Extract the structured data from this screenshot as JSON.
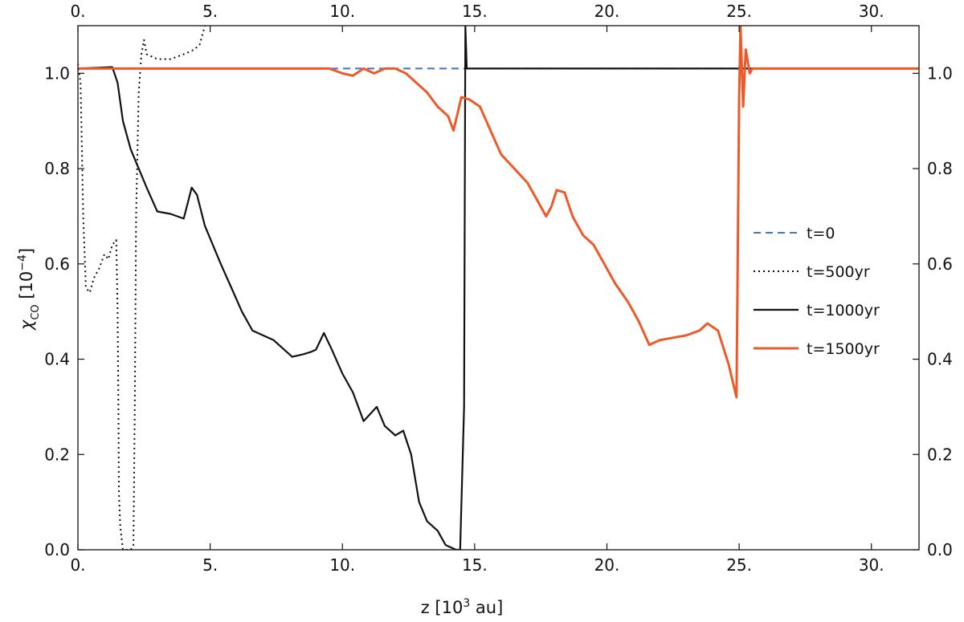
{
  "chart_data": {
    "type": "line",
    "xlabel": {
      "main": "z [10",
      "sup": "3",
      "unit": " au]"
    },
    "ylabel": {
      "main": "χ",
      "sub": "CO",
      "unit": " [10",
      "sup": "−4",
      "close": "]"
    },
    "xlim": [
      0,
      31.8
    ],
    "ylim": [
      0,
      1.1
    ],
    "x_ticks": [
      0,
      5,
      10,
      15,
      20,
      25,
      30
    ],
    "x_tick_labels": [
      "0.",
      "5.",
      "10.",
      "15.",
      "20.",
      "25.",
      "30."
    ],
    "y_ticks": [
      0,
      0.2,
      0.4,
      0.6,
      0.8,
      1.0
    ],
    "y_tick_labels": [
      "0.0",
      "0.2",
      "0.4",
      "0.6",
      "0.8",
      "1.0"
    ],
    "grid": false,
    "legend_position": "right",
    "series": [
      {
        "name": "t=0",
        "color": "#4472c4",
        "style": "dashed",
        "points": [
          [
            0,
            1.01
          ],
          [
            31.8,
            1.01
          ]
        ]
      },
      {
        "name": "t=500yr",
        "color": "#111111",
        "style": "dotted",
        "points": [
          [
            0.0,
            1.02
          ],
          [
            0.1,
            0.98
          ],
          [
            0.2,
            0.7
          ],
          [
            0.3,
            0.55
          ],
          [
            0.45,
            0.54
          ],
          [
            0.6,
            0.57
          ],
          [
            0.8,
            0.59
          ],
          [
            1.0,
            0.62
          ],
          [
            1.15,
            0.61
          ],
          [
            1.3,
            0.64
          ],
          [
            1.45,
            0.65
          ],
          [
            1.5,
            0.5
          ],
          [
            1.53,
            0.3
          ],
          [
            1.55,
            0.12
          ],
          [
            1.6,
            0.05
          ],
          [
            1.7,
            0.0
          ],
          [
            2.0,
            0.0
          ],
          [
            2.1,
            0.01
          ],
          [
            2.15,
            0.3
          ],
          [
            2.2,
            0.7
          ],
          [
            2.3,
            0.96
          ],
          [
            2.4,
            1.04
          ],
          [
            2.5,
            1.07
          ],
          [
            2.6,
            1.04
          ],
          [
            3.0,
            1.03
          ],
          [
            3.5,
            1.03
          ],
          [
            4.0,
            1.04
          ],
          [
            4.4,
            1.05
          ],
          [
            4.6,
            1.06
          ],
          [
            4.7,
            1.08
          ],
          [
            4.8,
            1.1
          ]
        ]
      },
      {
        "name": "t=1000yr",
        "color": "#111111",
        "style": "solid",
        "points": [
          [
            0,
            1.01
          ],
          [
            1.3,
            1.013
          ],
          [
            1.5,
            0.98
          ],
          [
            1.7,
            0.9
          ],
          [
            2.0,
            0.84
          ],
          [
            2.3,
            0.8
          ],
          [
            2.6,
            0.76
          ],
          [
            3.0,
            0.71
          ],
          [
            3.5,
            0.705
          ],
          [
            4.0,
            0.695
          ],
          [
            4.3,
            0.76
          ],
          [
            4.5,
            0.745
          ],
          [
            4.8,
            0.68
          ],
          [
            5.1,
            0.64
          ],
          [
            5.4,
            0.6
          ],
          [
            5.8,
            0.55
          ],
          [
            6.2,
            0.5
          ],
          [
            6.6,
            0.46
          ],
          [
            7.0,
            0.45
          ],
          [
            7.4,
            0.44
          ],
          [
            7.8,
            0.42
          ],
          [
            8.1,
            0.405
          ],
          [
            8.5,
            0.41
          ],
          [
            8.8,
            0.415
          ],
          [
            9.0,
            0.42
          ],
          [
            9.3,
            0.455
          ],
          [
            9.6,
            0.42
          ],
          [
            10.0,
            0.37
          ],
          [
            10.4,
            0.33
          ],
          [
            10.8,
            0.27
          ],
          [
            11.3,
            0.3
          ],
          [
            11.6,
            0.26
          ],
          [
            12.0,
            0.24
          ],
          [
            12.3,
            0.25
          ],
          [
            12.6,
            0.2
          ],
          [
            12.9,
            0.1
          ],
          [
            13.2,
            0.06
          ],
          [
            13.6,
            0.04
          ],
          [
            13.9,
            0.01
          ],
          [
            14.3,
            0.0
          ],
          [
            14.45,
            0.0
          ],
          [
            14.6,
            0.3
          ],
          [
            14.65,
            1.1
          ],
          [
            14.7,
            1.01
          ],
          [
            31.8,
            1.01
          ]
        ]
      },
      {
        "name": "t=1500yr",
        "color": "#ed5a2a",
        "style": "solid",
        "points": [
          [
            0,
            1.01
          ],
          [
            9.0,
            1.01
          ],
          [
            9.5,
            1.01
          ],
          [
            10.0,
            1.0
          ],
          [
            10.4,
            0.995
          ],
          [
            10.8,
            1.01
          ],
          [
            11.2,
            1.0
          ],
          [
            11.6,
            1.01
          ],
          [
            12.0,
            1.01
          ],
          [
            12.4,
            1.0
          ],
          [
            12.8,
            0.98
          ],
          [
            13.2,
            0.96
          ],
          [
            13.6,
            0.93
          ],
          [
            14.0,
            0.91
          ],
          [
            14.2,
            0.88
          ],
          [
            14.5,
            0.95
          ],
          [
            14.8,
            0.945
          ],
          [
            15.2,
            0.93
          ],
          [
            15.6,
            0.88
          ],
          [
            16.0,
            0.83
          ],
          [
            16.5,
            0.8
          ],
          [
            17.0,
            0.77
          ],
          [
            17.4,
            0.73
          ],
          [
            17.7,
            0.7
          ],
          [
            17.9,
            0.72
          ],
          [
            18.1,
            0.755
          ],
          [
            18.4,
            0.75
          ],
          [
            18.7,
            0.7
          ],
          [
            19.1,
            0.66
          ],
          [
            19.5,
            0.64
          ],
          [
            19.9,
            0.6
          ],
          [
            20.3,
            0.56
          ],
          [
            20.8,
            0.52
          ],
          [
            21.2,
            0.48
          ],
          [
            21.6,
            0.43
          ],
          [
            22.0,
            0.44
          ],
          [
            22.5,
            0.445
          ],
          [
            23.0,
            0.45
          ],
          [
            23.5,
            0.46
          ],
          [
            23.8,
            0.475
          ],
          [
            24.2,
            0.46
          ],
          [
            24.6,
            0.39
          ],
          [
            24.9,
            0.32
          ],
          [
            25.0,
            0.95
          ],
          [
            25.05,
            1.1
          ],
          [
            25.15,
            0.93
          ],
          [
            25.25,
            1.05
          ],
          [
            25.4,
            1.0
          ],
          [
            25.5,
            1.01
          ],
          [
            31.8,
            1.01
          ]
        ]
      }
    ]
  }
}
